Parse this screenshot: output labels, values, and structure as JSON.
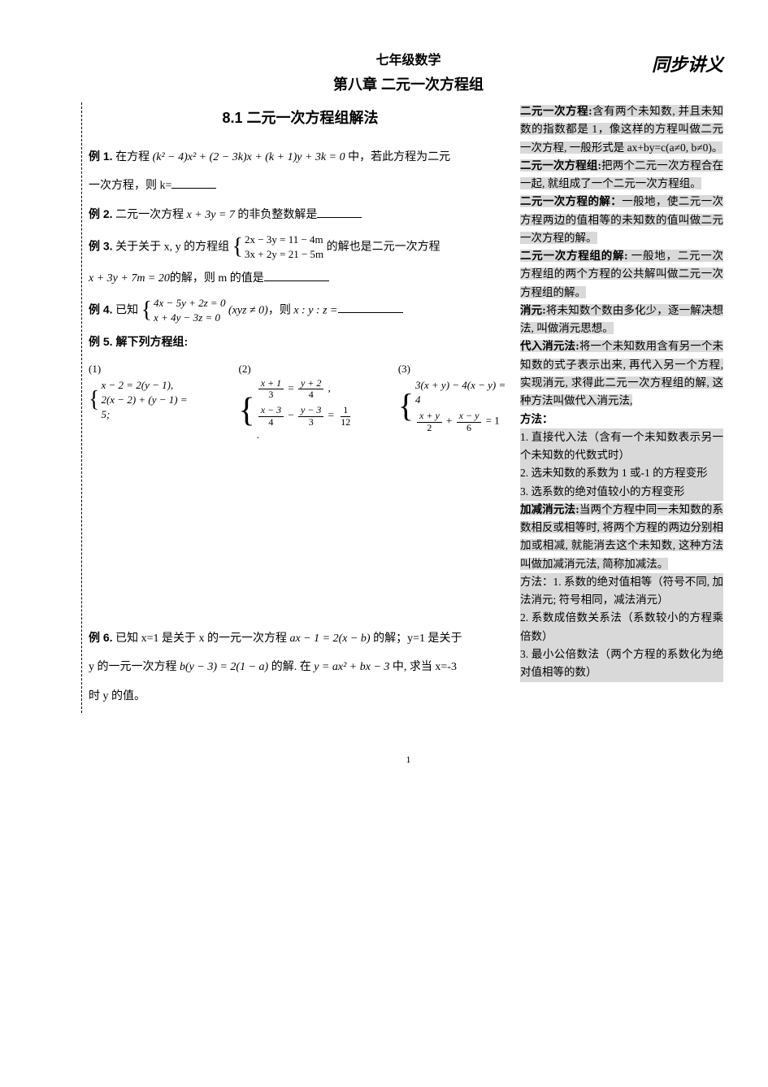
{
  "header": {
    "handwrite": "同步讲义",
    "subject": "七年级数学",
    "chapter": "第八章 二元一次方程组",
    "section": "8.1 二元一次方程组解法"
  },
  "examples": {
    "e1_label": "例 1.",
    "e1_text_a": " 在方程 ",
    "e1_formula": "(k² − 4)x² + (2 − 3k)x + (k + 1)y + 3k = 0",
    "e1_text_b": " 中，若此方程为二元",
    "e1_text_c": "一次方程，则 k=",
    "e2_label": "例 2.",
    "e2_text_a": " 二元一次方程 ",
    "e2_formula": "x + 3y = 7",
    "e2_text_b": " 的非负整数解是",
    "e3_label": "例 3.",
    "e3_text_a": " 关于关于 x, y 的方程组 ",
    "e3_sys_top": "2x − 3y = 11 − 4m",
    "e3_sys_bot": "3x + 2y = 21 − 5m",
    "e3_text_b": " 的解也是二元一次方程",
    "e3_text_c": "x + 3y + 7m = 20",
    "e3_text_d": "的解，则 m 的值是",
    "e4_label": "例 4.",
    "e4_text_a": " 已知 ",
    "e4_sys_top": "4x − 5y + 2z = 0",
    "e4_sys_bot": "x + 4y − 3z = 0",
    "e4_cond": "(xyz ≠ 0)",
    "e4_text_b": "，则 ",
    "e4_ratio": "x : y : z =",
    "e5_label": "例 5. 解下列方程组:",
    "e5_1_num": "(1)",
    "e5_1_top": "x − 2 = 2(y − 1),",
    "e5_1_bot": "2(x − 2) + (y − 1) = 5;",
    "e5_2_num": "(2)",
    "e5_2_top_l": "x + 1",
    "e5_2_top_ld": "3",
    "e5_2_top_r": "y + 2",
    "e5_2_top_rd": "4",
    "e5_2_bot_a": "x − 3",
    "e5_2_bot_ad": "4",
    "e5_2_bot_b": "y − 3",
    "e5_2_bot_bd": "3",
    "e5_2_bot_c": "1",
    "e5_2_bot_cd": "12",
    "e5_3_num": "(3)",
    "e5_3_top": "3(x + y) − 4(x − y) = 4",
    "e5_3_bot_a": "x + y",
    "e5_3_bot_ad": "2",
    "e5_3_bot_b": "x − y",
    "e5_3_bot_bd": "6",
    "e6_label": "例 6.",
    "e6_text_a": " 已知 x=1 是关于 x 的一元一次方程 ",
    "e6_f1": "ax − 1 = 2(x − b)",
    "e6_text_b": " 的解；y=1 是关于",
    "e6_text_c": "y 的一元一次方程 ",
    "e6_f2": "b(y − 3) = 2(1 − a)",
    "e6_text_d": " 的解. 在 ",
    "e6_f3": "y = ax² + bx − 3",
    "e6_text_e": " 中, 求当 x=-3",
    "e6_text_f": "时 y 的值。"
  },
  "sidebar": {
    "p1_term": "二元一次方程:",
    "p1_body": "含有两个未知数, 并且未知数的指数都是 1，像这样的方程叫做二元一次方程, 一般形式是 ax+by=c(a≠0, b≠0)。",
    "p2_term": "二元一次方程组:",
    "p2_body": "把两个二元一次方程合在一起, 就组成了一个二元一次方程组。",
    "p3_term": "二元一次方程的解：",
    "p3_body": "一般地，使二元一次方程两边的值相等的未知数的值叫做二元一次方程的解。",
    "p4_term": "二元一次方程组的解:",
    "p4_body": " 一般地，二元一次方程组的两个方程的公共解叫做二元一次方程组的解。",
    "p5_term": "消元:",
    "p5_body": "将未知数个数由多化少，逐一解决想法, 叫做消元思想。",
    "p6_term": "代入消元法:",
    "p6_body": "将一个未知数用含有另一个未知数的式子表示出来, 再代入另一个方程, 实现消元, 求得此二元一次方程组的解, 这种方法叫做代入消元法,",
    "p7_term": "方法：",
    "p7_1": "1. 直接代入法（含有一个未知数表示另一个未知数的代数式时）",
    "p7_2": "2. 选未知数的系数为 1 或-1 的方程变形",
    "p7_3": "3. 选系数的绝对值较小的方程变形",
    "p8_term": "加减消元法:",
    "p8_body": "当两个方程中同一未知数的系数相反或相等时, 将两个方程的两边分别相加或相减, 就能消去这个未知数, 这种方法叫做加减消元法, 简称加减法。",
    "p9_a": "方法：1. 系数的绝对值相等（符号不同, 加法消元; 符号相同，减法消元）",
    "p9_b": " 2. 系数成倍数关系法（系数较小的方程乘倍数）",
    "p9_c": " 3. 最小公倍数法（两个方程的系数化为绝对值相等的数）"
  },
  "footer": {
    "page_num": "1"
  }
}
